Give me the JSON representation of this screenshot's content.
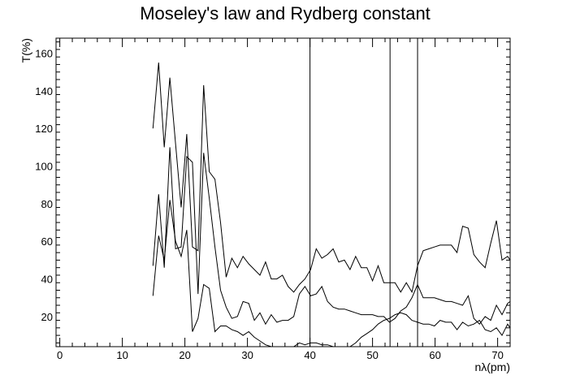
{
  "chart_data": {
    "type": "line",
    "title": "Moseley's law and Rydberg constant",
    "xlabel": "nλ(pm)",
    "ylabel": "T(%)",
    "xlim": [
      -0.6,
      72
    ],
    "ylim": [
      4,
      168
    ],
    "x_ticks": [
      0,
      10,
      20,
      30,
      40,
      50,
      60,
      70
    ],
    "x_tick_labels": [
      "0",
      "10",
      "20",
      "30",
      "40",
      "50",
      "60",
      "70"
    ],
    "y_ticks": [
      20,
      40,
      60,
      80,
      100,
      120,
      140,
      160
    ],
    "y_tick_labels": [
      "20",
      "40",
      "60",
      "80",
      "100",
      "120",
      "140",
      "160"
    ],
    "grid": false,
    "legend": "none",
    "line_color": "#000000",
    "vertical_lines_x": [
      40.0,
      52.8,
      57.2
    ],
    "series": [
      {
        "x": [
          14.9,
          15.8,
          16.7,
          17.6,
          18.5,
          19.4,
          20.3,
          21.2,
          22.1,
          23.0,
          23.9,
          24.8,
          25.7,
          26.6,
          27.5,
          28.4,
          29.3,
          30.2,
          31.1,
          32.0,
          32.9,
          33.8,
          34.7,
          35.6,
          36.5,
          37.4,
          38.3,
          39.2,
          40.1,
          41.0,
          41.9,
          42.8,
          43.7,
          44.6,
          45.5,
          46.4,
          47.3,
          48.2,
          49.1,
          50.0,
          50.9,
          51.8,
          52.7,
          53.6,
          54.5,
          55.4,
          56.3,
          57.2,
          58.1,
          59.0,
          59.9,
          60.8,
          61.7,
          62.6,
          63.5,
          64.4,
          65.3,
          66.2,
          67.1,
          68.0,
          68.9,
          69.8,
          70.7,
          71.6,
          72.0
        ],
        "values": [
          120,
          155,
          110,
          147,
          112,
          78,
          117,
          57,
          55,
          143,
          97,
          93,
          70,
          41,
          51,
          46,
          52,
          48,
          45,
          42,
          49,
          40,
          40,
          42,
          36,
          33,
          37,
          40,
          45,
          56,
          51,
          53,
          56,
          49,
          50,
          45,
          52,
          46,
          46,
          39,
          47,
          38,
          38,
          38,
          33,
          38,
          33,
          47,
          55,
          56,
          57,
          58,
          58,
          58,
          54,
          68,
          67,
          53,
          49,
          46,
          59,
          71,
          50,
          52,
          50
        ]
      },
      {
        "x": [
          14.9,
          15.8,
          16.7,
          17.6,
          18.5,
          19.4,
          20.3,
          21.2,
          22.1,
          23.0,
          23.9,
          24.8,
          25.7,
          26.6,
          27.5,
          28.4,
          29.3,
          30.2,
          31.1,
          32.0,
          32.9,
          33.8,
          34.7,
          35.6,
          36.5,
          37.4,
          38.3,
          39.2,
          40.1,
          41.0,
          41.9,
          42.8,
          43.7,
          44.6,
          45.5,
          46.4,
          47.3,
          48.2,
          49.1,
          50.0,
          50.9,
          51.8,
          52.7,
          53.6,
          54.5,
          55.4,
          56.3,
          57.2,
          58.1,
          59.0,
          59.9,
          60.8,
          61.7,
          62.6,
          63.5,
          64.4,
          65.3,
          66.2,
          67.1,
          68.0,
          68.9,
          69.8,
          70.7,
          71.6,
          72.0
        ],
        "values": [
          47,
          85,
          46,
          110,
          56,
          57,
          105,
          102,
          32,
          107,
          83,
          57,
          34,
          25,
          19,
          20,
          28,
          27,
          18,
          22,
          16,
          21,
          17,
          18,
          18,
          20,
          32,
          36,
          31,
          32,
          36,
          28,
          25,
          24,
          24,
          23,
          22,
          21,
          21,
          21,
          20,
          20,
          17,
          19,
          23,
          25,
          30,
          37,
          30,
          30,
          30,
          29,
          28,
          28,
          27,
          26,
          31,
          19,
          16,
          20,
          18,
          26,
          21,
          27,
          28
        ]
      },
      {
        "x": [
          14.9,
          15.8,
          16.7,
          17.6,
          18.5,
          19.4,
          20.3,
          21.2,
          22.1,
          23.0,
          23.9,
          24.8,
          25.7,
          26.6,
          27.5,
          28.4,
          29.3,
          30.2,
          31.1,
          32.0,
          32.9,
          33.8,
          34.7,
          35.6,
          36.5,
          37.4,
          38.3,
          39.2,
          40.1,
          41.0,
          41.9,
          42.8,
          43.7,
          44.6,
          45.5,
          46.4,
          47.3,
          48.2,
          49.1,
          50.0,
          50.9,
          51.8,
          52.7,
          53.6,
          54.5,
          55.4,
          56.3,
          57.2,
          58.1,
          59.0,
          59.9,
          60.8,
          61.7,
          62.6,
          63.5,
          64.4,
          65.3,
          66.2,
          67.1,
          68.0,
          68.9,
          69.8,
          70.7,
          71.6,
          72.0
        ],
        "values": [
          31,
          63,
          50,
          82,
          60,
          52,
          66,
          12,
          19,
          37,
          35,
          12,
          15,
          15,
          13,
          12,
          10,
          12,
          9,
          7,
          5,
          4,
          3,
          3,
          3,
          4,
          6,
          5,
          6,
          6,
          5,
          5,
          4,
          3,
          3,
          4,
          6,
          9,
          11,
          13,
          16,
          18,
          19,
          21,
          22,
          21,
          18,
          17,
          16,
          16,
          15,
          18,
          17,
          17,
          13,
          17,
          15,
          16,
          18,
          13,
          12,
          14,
          10,
          16,
          14
        ]
      }
    ]
  }
}
